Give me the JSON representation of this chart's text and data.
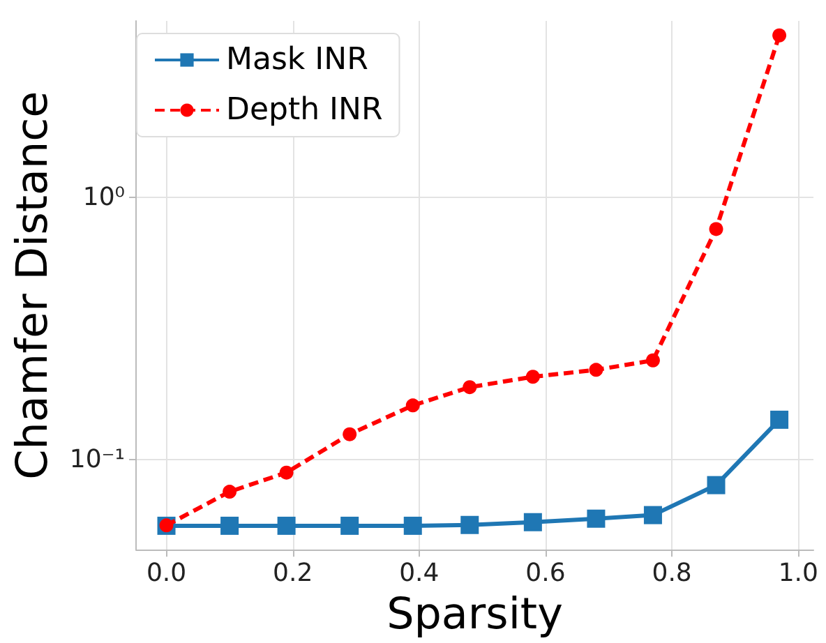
{
  "chart_data": {
    "type": "line",
    "xlabel": "Sparsity",
    "ylabel": "Chamfer Distance",
    "x": [
      0,
      0.1,
      0.19,
      0.29,
      0.39,
      0.48,
      0.58,
      0.68,
      0.77,
      0.87,
      0.97
    ],
    "series": [
      {
        "name": "Mask INR",
        "color": "#1f77b4",
        "marker": "square",
        "line_style": "solid",
        "values": [
          0.056,
          0.056,
          0.056,
          0.056,
          0.056,
          0.0564,
          0.0578,
          0.0596,
          0.0615,
          0.08,
          0.142
        ]
      },
      {
        "name": "Depth INR",
        "color": "#ff0000",
        "marker": "circle",
        "line_style": "dashed",
        "values": [
          0.0562,
          0.0755,
          0.0893,
          0.125,
          0.161,
          0.189,
          0.207,
          0.22,
          0.239,
          0.757,
          4.14
        ]
      }
    ],
    "log": "y",
    "xlim": [
      -0.048,
      1.024
    ],
    "ylim": [
      0.0454,
      4.7
    ],
    "xticks": [
      {
        "value": 0,
        "label": "0.0"
      },
      {
        "value": 0.2,
        "label": "0.2"
      },
      {
        "value": 0.4,
        "label": "0.4"
      },
      {
        "value": 0.6,
        "label": "0.6"
      },
      {
        "value": 0.8,
        "label": "0.8"
      },
      {
        "value": 1,
        "label": "1.0"
      }
    ],
    "yticks": [
      {
        "value": 0.1,
        "label": "10⁻¹"
      },
      {
        "value": 1,
        "label": "10⁰"
      }
    ],
    "grid": true,
    "legend": "top left"
  }
}
